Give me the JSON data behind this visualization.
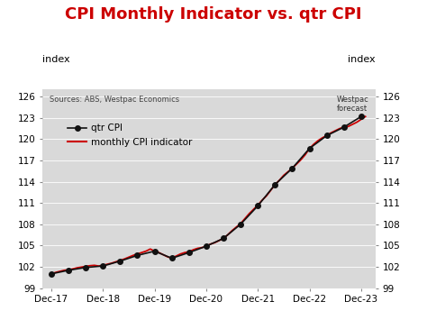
{
  "title": "CPI Monthly Indicator vs. qtr CPI",
  "title_color": "#cc0000",
  "title_fontsize": 13,
  "ylabel_left": "index",
  "ylabel_right": "index",
  "source_text": "Sources: ABS, Westpac Economics",
  "forecast_text": "Westpac\nforecast",
  "ylim": [
    99,
    127
  ],
  "yticks": [
    99,
    102,
    105,
    108,
    111,
    114,
    117,
    120,
    123,
    126
  ],
  "background_color": "#d9d9d9",
  "qtr_cpi_x": [
    2017.917,
    2018.25,
    2018.583,
    2018.917,
    2019.25,
    2019.583,
    2019.917,
    2020.25,
    2020.583,
    2020.917,
    2021.25,
    2021.583,
    2021.917,
    2022.25,
    2022.583,
    2022.917,
    2023.25,
    2023.583,
    2023.917
  ],
  "qtr_cpi_y": [
    101.0,
    101.5,
    101.9,
    102.1,
    102.8,
    103.6,
    104.2,
    103.2,
    104.0,
    104.9,
    106.0,
    108.0,
    110.6,
    113.6,
    115.9,
    118.7,
    120.5,
    121.7,
    123.2
  ],
  "monthly_x": [
    2017.917,
    2018.0,
    2018.083,
    2018.167,
    2018.25,
    2018.333,
    2018.417,
    2018.5,
    2018.583,
    2018.667,
    2018.75,
    2018.833,
    2018.917,
    2019.0,
    2019.083,
    2019.167,
    2019.25,
    2019.333,
    2019.417,
    2019.5,
    2019.583,
    2019.667,
    2019.75,
    2019.833,
    2019.917,
    2020.0,
    2020.083,
    2020.167,
    2020.25,
    2020.333,
    2020.417,
    2020.5,
    2020.583,
    2020.667,
    2020.75,
    2020.833,
    2020.917,
    2021.0,
    2021.083,
    2021.167,
    2021.25,
    2021.333,
    2021.417,
    2021.5,
    2021.583,
    2021.667,
    2021.75,
    2021.833,
    2021.917,
    2022.0,
    2022.083,
    2022.167,
    2022.25,
    2022.333,
    2022.417,
    2022.5,
    2022.583,
    2022.667,
    2022.75,
    2022.833,
    2022.917,
    2023.0,
    2023.083,
    2023.167,
    2023.25,
    2023.333,
    2023.417,
    2023.5,
    2023.583,
    2023.667,
    2023.75,
    2023.833,
    2023.917,
    2024.0
  ],
  "monthly_y": [
    101.0,
    101.2,
    101.35,
    101.5,
    101.55,
    101.7,
    101.85,
    101.95,
    102.05,
    102.15,
    102.2,
    102.1,
    102.2,
    102.35,
    102.5,
    102.7,
    102.9,
    103.1,
    103.35,
    103.6,
    103.8,
    104.0,
    104.2,
    104.5,
    104.2,
    104.0,
    103.7,
    103.4,
    103.2,
    103.5,
    103.8,
    104.0,
    104.1,
    104.4,
    104.6,
    104.7,
    104.9,
    105.2,
    105.4,
    105.7,
    106.0,
    106.5,
    107.1,
    107.6,
    108.1,
    108.8,
    109.5,
    110.1,
    110.7,
    111.4,
    112.0,
    112.8,
    113.6,
    114.2,
    114.9,
    115.4,
    115.9,
    116.5,
    117.1,
    117.8,
    118.7,
    119.3,
    119.8,
    120.2,
    120.5,
    120.9,
    121.2,
    121.5,
    121.7,
    121.8,
    122.1,
    122.4,
    122.8,
    123.2
  ],
  "xtick_positions": [
    2017.917,
    2018.917,
    2019.917,
    2020.917,
    2021.917,
    2022.917,
    2023.917
  ],
  "xtick_labels": [
    "Dec-17",
    "Dec-18",
    "Dec-19",
    "Dec-20",
    "Dec-21",
    "Dec-22",
    "Dec-23"
  ],
  "qtr_color": "#111111",
  "monthly_color": "#cc0000",
  "forecast_x": 2023.5,
  "xlim_left": 2017.75,
  "xlim_right": 2024.2
}
